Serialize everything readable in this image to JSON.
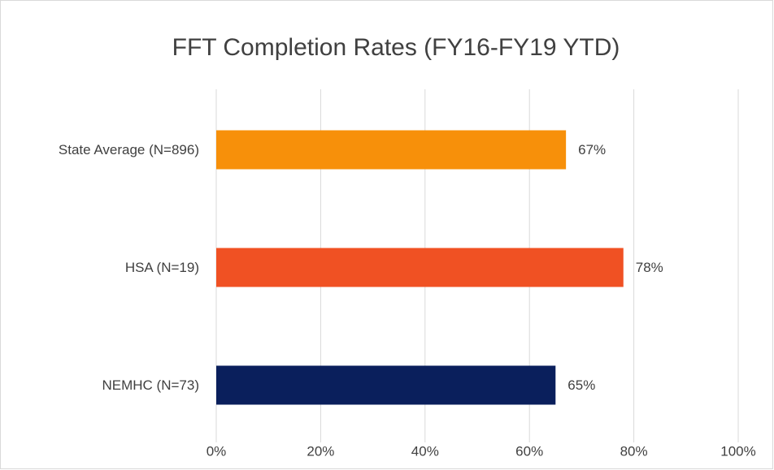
{
  "chart_data": {
    "type": "hbar",
    "title": "FFT Completion Rates (FY16-FY19 YTD)",
    "categories": [
      "State Average (N=896)",
      "HSA (N=19)",
      "NEMHC (N=73)"
    ],
    "values": [
      67,
      78,
      65
    ],
    "value_labels": [
      "67%",
      "78%",
      "65%"
    ],
    "colors": [
      "#f7900a",
      "#f05123",
      "#0a1f5c"
    ],
    "xlim": [
      0,
      100
    ],
    "xticks": [
      {
        "value": 0,
        "label": "0%"
      },
      {
        "value": 20,
        "label": "20%"
      },
      {
        "value": 40,
        "label": "40%"
      },
      {
        "value": 60,
        "label": "60%"
      },
      {
        "value": 80,
        "label": "80%"
      },
      {
        "value": 100,
        "label": "100%"
      }
    ],
    "grid": true
  }
}
